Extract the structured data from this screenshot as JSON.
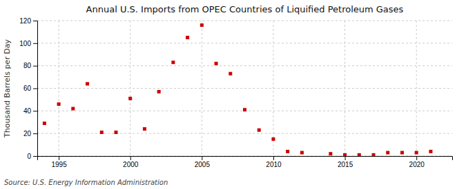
{
  "chart_data": {
    "type": "scatter",
    "title": "Annual U.S. Imports from OPEC Countries of Liquified Petroleum Gases",
    "ylabel": "Thousand Barrels per Day",
    "annotations": [
      "Source: U.S. Energy Information Administration"
    ],
    "x": [
      1994,
      1995,
      1996,
      1997,
      1998,
      1999,
      2000,
      2001,
      2002,
      2003,
      2004,
      2005,
      2006,
      2007,
      2008,
      2009,
      2010,
      2011,
      2012,
      2014,
      2015,
      2016,
      2017,
      2018,
      2019,
      2020,
      2021
    ],
    "values": [
      29,
      46,
      42,
      64,
      21,
      21,
      51,
      24,
      57,
      83,
      105,
      116,
      82,
      73,
      41,
      23,
      15,
      4,
      3,
      2,
      1,
      1,
      1,
      3,
      3,
      3,
      4
    ],
    "color": "#cc0000",
    "marker": "square",
    "xlim": [
      1993.5,
      2022.5
    ],
    "ylim": [
      0,
      120
    ],
    "xticks": [
      1995,
      2000,
      2005,
      2010,
      2015,
      2020
    ],
    "yticks": [
      0,
      20,
      40,
      60,
      80,
      100,
      120
    ],
    "grid": true
  }
}
